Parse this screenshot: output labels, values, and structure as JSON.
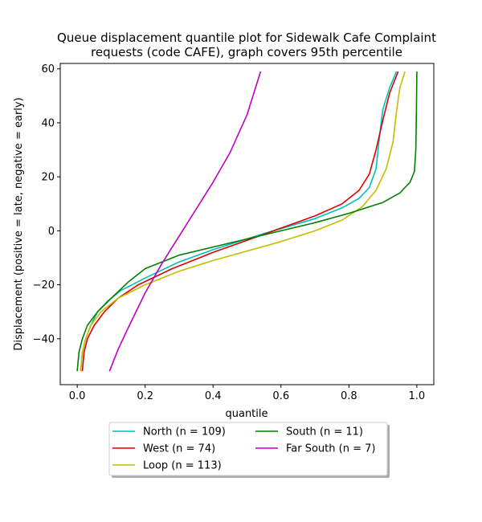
{
  "chart_data": {
    "type": "line",
    "title": "Queue displacement quantile plot for Sidewalk Cafe Complaint requests (code CAFE), graph covers 95th percentile",
    "title_lines": [
      "Queue displacement quantile plot for Sidewalk Cafe Complaint",
      "requests (code CAFE), graph covers 95th percentile"
    ],
    "xlabel": "quantile",
    "ylabel": "Displacement (positive = late, negative = early)",
    "xlim": [
      -0.05,
      1.05
    ],
    "ylim": [
      -57,
      62
    ],
    "xticks": [
      0.0,
      0.2,
      0.4,
      0.6,
      0.8,
      1.0
    ],
    "xtick_labels": [
      "0.0",
      "0.2",
      "0.4",
      "0.6",
      "0.8",
      "1.0"
    ],
    "yticks": [
      -40,
      -20,
      0,
      20,
      40,
      60
    ],
    "ytick_labels": [
      "−40",
      "−20",
      "0",
      "20",
      "40",
      "60"
    ],
    "grid": false,
    "legend_placement": "below plot, two columns",
    "series": [
      {
        "name": "North (n = 109)",
        "color": "#00bfbf",
        "points": [
          [
            0.01,
            -52
          ],
          [
            0.015,
            -45
          ],
          [
            0.025,
            -40
          ],
          [
            0.04,
            -35
          ],
          [
            0.06,
            -30
          ],
          [
            0.09,
            -26
          ],
          [
            0.13,
            -22
          ],
          [
            0.2,
            -17.5
          ],
          [
            0.3,
            -11.5
          ],
          [
            0.4,
            -7
          ],
          [
            0.5,
            -3
          ],
          [
            0.55,
            -1
          ],
          [
            0.6,
            0.8
          ],
          [
            0.7,
            4.5
          ],
          [
            0.78,
            8.5
          ],
          [
            0.83,
            12
          ],
          [
            0.86,
            16
          ],
          [
            0.88,
            23
          ],
          [
            0.89,
            35
          ],
          [
            0.9,
            45
          ],
          [
            0.92,
            53
          ],
          [
            0.94,
            59
          ]
        ]
      },
      {
        "name": "West (n = 74)",
        "color": "#e00000",
        "points": [
          [
            0.015,
            -52
          ],
          [
            0.02,
            -45
          ],
          [
            0.03,
            -40
          ],
          [
            0.05,
            -35
          ],
          [
            0.08,
            -30
          ],
          [
            0.12,
            -25
          ],
          [
            0.18,
            -20
          ],
          [
            0.28,
            -14
          ],
          [
            0.4,
            -8
          ],
          [
            0.5,
            -3.5
          ],
          [
            0.55,
            -1.3
          ],
          [
            0.6,
            1
          ],
          [
            0.7,
            5.5
          ],
          [
            0.78,
            10
          ],
          [
            0.83,
            15
          ],
          [
            0.86,
            21
          ],
          [
            0.88,
            30
          ],
          [
            0.9,
            41
          ],
          [
            0.92,
            51
          ],
          [
            0.945,
            59
          ]
        ]
      },
      {
        "name": "Loop (n = 113)",
        "color": "#bfbf00",
        "points": [
          [
            0.01,
            -52
          ],
          [
            0.015,
            -45
          ],
          [
            0.025,
            -40
          ],
          [
            0.04,
            -35
          ],
          [
            0.07,
            -30
          ],
          [
            0.12,
            -25
          ],
          [
            0.2,
            -20
          ],
          [
            0.3,
            -15
          ],
          [
            0.4,
            -11
          ],
          [
            0.5,
            -7.5
          ],
          [
            0.6,
            -4
          ],
          [
            0.7,
            0
          ],
          [
            0.78,
            4
          ],
          [
            0.84,
            9
          ],
          [
            0.88,
            15
          ],
          [
            0.91,
            23
          ],
          [
            0.93,
            33
          ],
          [
            0.94,
            44
          ],
          [
            0.95,
            53
          ],
          [
            0.965,
            59
          ]
        ]
      },
      {
        "name": "South (n = 11)",
        "color": "#007f00",
        "points": [
          [
            0.0,
            -52
          ],
          [
            0.005,
            -45
          ],
          [
            0.015,
            -40
          ],
          [
            0.03,
            -35
          ],
          [
            0.06,
            -30
          ],
          [
            0.1,
            -25
          ],
          [
            0.15,
            -19
          ],
          [
            0.2,
            -14
          ],
          [
            0.3,
            -9
          ],
          [
            0.4,
            -6
          ],
          [
            0.5,
            -3
          ],
          [
            0.6,
            0
          ],
          [
            0.7,
            3
          ],
          [
            0.8,
            6.5
          ],
          [
            0.9,
            10.5
          ],
          [
            0.95,
            14
          ],
          [
            0.98,
            18
          ],
          [
            0.993,
            22
          ],
          [
            0.997,
            30
          ],
          [
            0.999,
            45
          ],
          [
            1.0,
            59
          ]
        ]
      },
      {
        "name": "Far South (n = 7)",
        "color": "#bf00bf",
        "points": [
          [
            0.095,
            -52
          ],
          [
            0.12,
            -44
          ],
          [
            0.15,
            -36
          ],
          [
            0.2,
            -23
          ],
          [
            0.25,
            -12
          ],
          [
            0.3,
            -2
          ],
          [
            0.35,
            8
          ],
          [
            0.4,
            18
          ],
          [
            0.45,
            29
          ],
          [
            0.5,
            43
          ],
          [
            0.54,
            59
          ]
        ]
      }
    ]
  }
}
